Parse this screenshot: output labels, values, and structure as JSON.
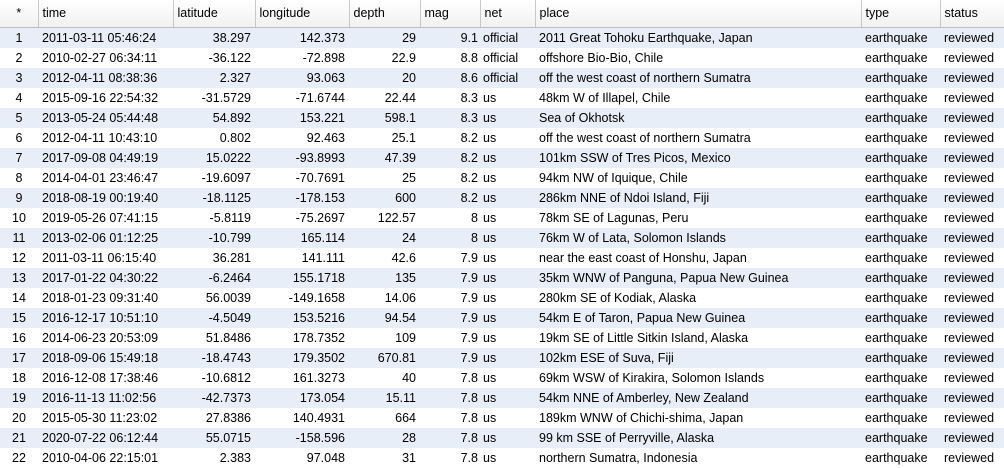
{
  "columns": [
    "*",
    "time",
    "latitude",
    "longitude",
    "depth",
    "mag",
    "net",
    "place",
    "type",
    "status"
  ],
  "rows": [
    [
      "1",
      "2011-03-11 05:46:24",
      "38.297",
      "142.373",
      "29",
      "9.1",
      "official",
      "2011 Great Tohoku Earthquake, Japan",
      "earthquake",
      "reviewed"
    ],
    [
      "2",
      "2010-02-27 06:34:11",
      "-36.122",
      "-72.898",
      "22.9",
      "8.8",
      "official",
      "offshore Bio-Bio, Chile",
      "earthquake",
      "reviewed"
    ],
    [
      "3",
      "2012-04-11 08:38:36",
      "2.327",
      "93.063",
      "20",
      "8.6",
      "official",
      "off the west coast of northern Sumatra",
      "earthquake",
      "reviewed"
    ],
    [
      "4",
      "2015-09-16 22:54:32",
      "-31.5729",
      "-71.6744",
      "22.44",
      "8.3",
      "us",
      "48km W of Illapel, Chile",
      "earthquake",
      "reviewed"
    ],
    [
      "5",
      "2013-05-24 05:44:48",
      "54.892",
      "153.221",
      "598.1",
      "8.3",
      "us",
      "Sea of Okhotsk",
      "earthquake",
      "reviewed"
    ],
    [
      "6",
      "2012-04-11 10:43:10",
      "0.802",
      "92.463",
      "25.1",
      "8.2",
      "us",
      "off the west coast of northern Sumatra",
      "earthquake",
      "reviewed"
    ],
    [
      "7",
      "2017-09-08 04:49:19",
      "15.0222",
      "-93.8993",
      "47.39",
      "8.2",
      "us",
      "101km SSW of Tres Picos, Mexico",
      "earthquake",
      "reviewed"
    ],
    [
      "8",
      "2014-04-01 23:46:47",
      "-19.6097",
      "-70.7691",
      "25",
      "8.2",
      "us",
      "94km NW of Iquique, Chile",
      "earthquake",
      "reviewed"
    ],
    [
      "9",
      "2018-08-19 00:19:40",
      "-18.1125",
      "-178.153",
      "600",
      "8.2",
      "us",
      "286km NNE of Ndoi Island, Fiji",
      "earthquake",
      "reviewed"
    ],
    [
      "10",
      "2019-05-26 07:41:15",
      "-5.8119",
      "-75.2697",
      "122.57",
      "8",
      "us",
      "78km SE of Lagunas, Peru",
      "earthquake",
      "reviewed"
    ],
    [
      "11",
      "2013-02-06 01:12:25",
      "-10.799",
      "165.114",
      "24",
      "8",
      "us",
      "76km W of Lata, Solomon Islands",
      "earthquake",
      "reviewed"
    ],
    [
      "12",
      "2011-03-11 06:15:40",
      "36.281",
      "141.111",
      "42.6",
      "7.9",
      "us",
      "near the east coast of Honshu, Japan",
      "earthquake",
      "reviewed"
    ],
    [
      "13",
      "2017-01-22 04:30:22",
      "-6.2464",
      "155.1718",
      "135",
      "7.9",
      "us",
      "35km WNW of Panguna, Papua New Guinea",
      "earthquake",
      "reviewed"
    ],
    [
      "14",
      "2018-01-23 09:31:40",
      "56.0039",
      "-149.1658",
      "14.06",
      "7.9",
      "us",
      "280km SE of Kodiak, Alaska",
      "earthquake",
      "reviewed"
    ],
    [
      "15",
      "2016-12-17 10:51:10",
      "-4.5049",
      "153.5216",
      "94.54",
      "7.9",
      "us",
      "54km E of Taron, Papua New Guinea",
      "earthquake",
      "reviewed"
    ],
    [
      "16",
      "2014-06-23 20:53:09",
      "51.8486",
      "178.7352",
      "109",
      "7.9",
      "us",
      "19km SE of Little Sitkin Island, Alaska",
      "earthquake",
      "reviewed"
    ],
    [
      "17",
      "2018-09-06 15:49:18",
      "-18.4743",
      "179.3502",
      "670.81",
      "7.9",
      "us",
      "102km ESE of Suva, Fiji",
      "earthquake",
      "reviewed"
    ],
    [
      "18",
      "2016-12-08 17:38:46",
      "-10.6812",
      "161.3273",
      "40",
      "7.8",
      "us",
      "69km WSW of Kirakira, Solomon Islands",
      "earthquake",
      "reviewed"
    ],
    [
      "19",
      "2016-11-13 11:02:56",
      "-42.7373",
      "173.054",
      "15.11",
      "7.8",
      "us",
      "54km NNE of Amberley, New Zealand",
      "earthquake",
      "reviewed"
    ],
    [
      "20",
      "2015-05-30 11:23:02",
      "27.8386",
      "140.4931",
      "664",
      "7.8",
      "us",
      "189km WNW of Chichi-shima, Japan",
      "earthquake",
      "reviewed"
    ],
    [
      "21",
      "2020-07-22 06:12:44",
      "55.0715",
      "-158.596",
      "28",
      "7.8",
      "us",
      "99 km SSE of Perryville, Alaska",
      "earthquake",
      "reviewed"
    ],
    [
      "22",
      "2010-04-06 22:15:01",
      "2.383",
      "97.048",
      "31",
      "7.8",
      "us",
      "northern Sumatra, Indonesia",
      "earthquake",
      "reviewed"
    ]
  ]
}
